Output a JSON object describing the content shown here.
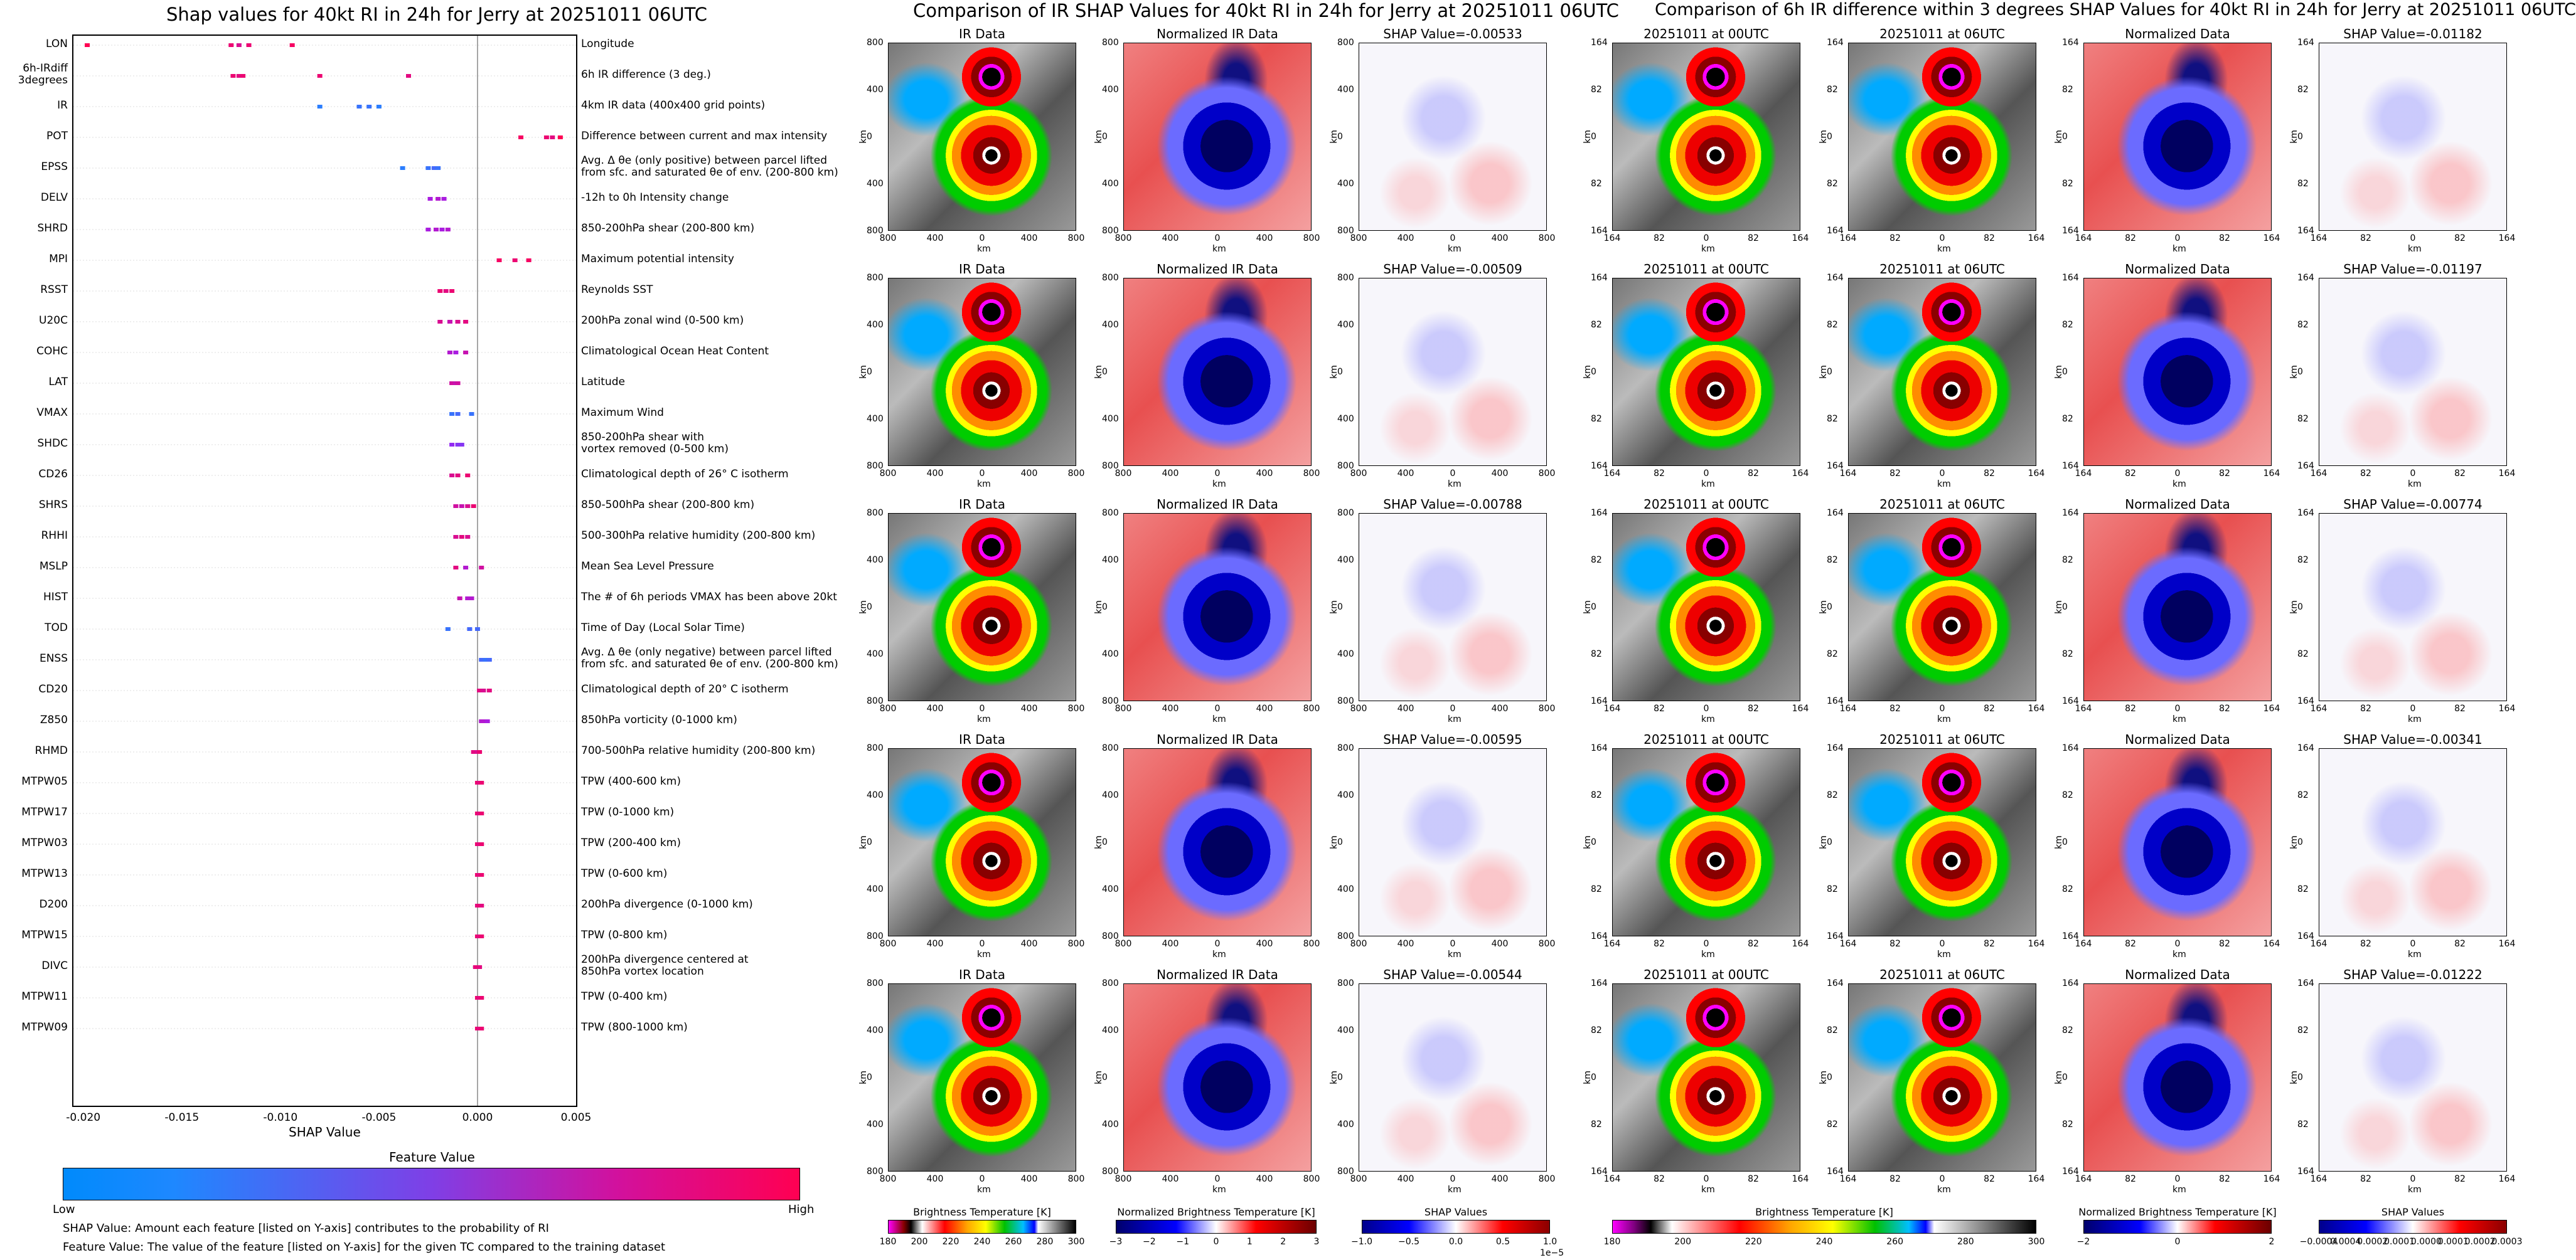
{
  "colors": {
    "low": "#1e88ff",
    "mid": "#a020f0",
    "high": "#ff0052"
  },
  "chart_data": [
    {
      "type": "scatter",
      "title": "Shap values for 40kt RI in 24h for Jerry at 20251011 06UTC",
      "xlabel": "SHAP Value",
      "xlim": [
        -0.0205,
        0.005
      ],
      "xticks": [
        "-0.020",
        "-0.015",
        "-0.010",
        "-0.005",
        "0.000",
        "0.005"
      ],
      "xtick_values": [
        -0.02,
        -0.015,
        -0.01,
        -0.005,
        0,
        0.005
      ],
      "colorbar": {
        "title": "Feature Value",
        "low": "Low",
        "high": "High"
      },
      "features": [
        {
          "code": "LON",
          "desc": "Longitude",
          "points": [
            [
              -0.0198,
              1
            ],
            [
              -0.0125,
              0.9
            ],
            [
              -0.0121,
              0.8
            ],
            [
              -0.0116,
              0.9
            ],
            [
              -0.0094,
              0.95
            ]
          ]
        },
        {
          "code": "6h-IRdiff\n3degrees",
          "desc": "6h IR difference (3 deg.)",
          "points": [
            [
              -0.0124,
              0.9
            ],
            [
              -0.0121,
              0.85
            ],
            [
              -0.0119,
              0.9
            ],
            [
              -0.008,
              0.9
            ],
            [
              -0.0035,
              0.85
            ]
          ]
        },
        {
          "code": "IR",
          "desc": "4km IR data (400x400 grid points)",
          "points": [
            [
              -0.008,
              0.05
            ],
            [
              -0.006,
              0.1
            ],
            [
              -0.0055,
              0.1
            ],
            [
              -0.005,
              0.05
            ]
          ]
        },
        {
          "code": "POT",
          "desc": "Difference between current and max intensity",
          "points": [
            [
              0.0022,
              0.95
            ],
            [
              0.0035,
              0.9
            ],
            [
              0.0038,
              0.85
            ],
            [
              0.0042,
              1
            ]
          ]
        },
        {
          "code": "EPSS",
          "desc": "Avg. Δ θe (only positive) between parcel lifted\nfrom sfc. and saturated θe of env. (200-800 km)",
          "points": [
            [
              -0.0038,
              0.05
            ],
            [
              -0.0025,
              0.1
            ],
            [
              -0.0022,
              0.15
            ],
            [
              -0.002,
              0.1
            ]
          ]
        },
        {
          "code": "DELV",
          "desc": "-12h to 0h Intensity change",
          "points": [
            [
              -0.0024,
              0.55
            ],
            [
              -0.002,
              0.6
            ],
            [
              -0.0017,
              0.55
            ]
          ]
        },
        {
          "code": "SHRD",
          "desc": "850-200hPa shear (200-800 km)",
          "points": [
            [
              -0.0025,
              0.55
            ],
            [
              -0.0021,
              0.6
            ],
            [
              -0.0018,
              0.55
            ],
            [
              -0.0015,
              0.6
            ]
          ]
        },
        {
          "code": "MPI",
          "desc": "Maximum potential intensity",
          "points": [
            [
              0.0011,
              0.95
            ],
            [
              0.0019,
              0.9
            ],
            [
              0.0026,
              0.95
            ]
          ]
        },
        {
          "code": "RSST",
          "desc": "Reynolds SST",
          "points": [
            [
              -0.0019,
              0.9
            ],
            [
              -0.0016,
              0.85
            ],
            [
              -0.0013,
              0.9
            ]
          ]
        },
        {
          "code": "U20C",
          "desc": "200hPa zonal wind (0-500 km)",
          "points": [
            [
              -0.0019,
              0.8
            ],
            [
              -0.0014,
              0.7
            ],
            [
              -0.001,
              0.8
            ],
            [
              -0.0006,
              0.85
            ]
          ]
        },
        {
          "code": "COHC",
          "desc": "Climatological Ocean Heat Content",
          "points": [
            [
              -0.0014,
              0.6
            ],
            [
              -0.0011,
              0.55
            ],
            [
              -0.0006,
              0.7
            ]
          ]
        },
        {
          "code": "LAT",
          "desc": "Latitude",
          "points": [
            [
              -0.0013,
              0.75
            ],
            [
              -0.0011,
              0.7
            ],
            [
              -0.001,
              0.75
            ]
          ]
        },
        {
          "code": "VMAX",
          "desc": "Maximum Wind",
          "points": [
            [
              -0.0013,
              0.1
            ],
            [
              -0.001,
              0.15
            ],
            [
              -0.0003,
              0.1
            ]
          ]
        },
        {
          "code": "SHDC",
          "desc": "850-200hPa shear with\nvortex removed (0-500 km)",
          "points": [
            [
              -0.0013,
              0.45
            ],
            [
              -0.001,
              0.4
            ],
            [
              -0.0008,
              0.4
            ]
          ]
        },
        {
          "code": "CD26",
          "desc": "Climatological depth of 26° C isotherm",
          "points": [
            [
              -0.0013,
              0.8
            ],
            [
              -0.001,
              0.85
            ],
            [
              -0.0005,
              0.9
            ]
          ]
        },
        {
          "code": "SHRS",
          "desc": "850-500hPa shear (200-800 km)",
          "points": [
            [
              -0.0011,
              0.75
            ],
            [
              -0.0008,
              0.7
            ],
            [
              -0.0005,
              0.8
            ],
            [
              -0.0002,
              0.9
            ]
          ]
        },
        {
          "code": "RHHI",
          "desc": "500-300hPa relative humidity (200-800 km)",
          "points": [
            [
              -0.0011,
              0.8
            ],
            [
              -0.0008,
              0.85
            ],
            [
              -0.0005,
              0.8
            ]
          ]
        },
        {
          "code": "MSLP",
          "desc": "Mean Sea Level Pressure",
          "points": [
            [
              -0.0011,
              0.85
            ],
            [
              -0.0006,
              0.6
            ],
            [
              0.0002,
              0.75
            ]
          ]
        },
        {
          "code": "HIST",
          "desc": "The # of 6h periods VMAX has been above 20kt",
          "points": [
            [
              -0.0009,
              0.7
            ],
            [
              -0.0005,
              0.6
            ],
            [
              -0.0003,
              0.6
            ]
          ]
        },
        {
          "code": "TOD",
          "desc": "Time of Day (Local Solar Time)",
          "points": [
            [
              -0.0015,
              0.1
            ],
            [
              -0.0004,
              0.15
            ],
            [
              0.0,
              0.15
            ]
          ]
        },
        {
          "code": "ENSS",
          "desc": "Avg. Δ θe (only negative) between parcel lifted\nfrom sfc. and saturated θe of env. (200-800 km)",
          "points": [
            [
              0.0002,
              0.15
            ],
            [
              0.0004,
              0.1
            ],
            [
              0.0006,
              0.15
            ]
          ]
        },
        {
          "code": "CD20",
          "desc": "Climatological depth of 20° C isotherm",
          "points": [
            [
              0.0001,
              0.85
            ],
            [
              0.0003,
              0.8
            ],
            [
              0.0006,
              0.85
            ]
          ]
        },
        {
          "code": "Z850",
          "desc": "850hPa vorticity (0-1000 km)",
          "points": [
            [
              0.0002,
              0.6
            ],
            [
              0.0004,
              0.6
            ],
            [
              0.0005,
              0.55
            ]
          ]
        },
        {
          "code": "RHMD",
          "desc": "700-500hPa relative humidity (200-800 km)",
          "points": [
            [
              -0.0002,
              0.85
            ],
            [
              0.0,
              0.8
            ],
            [
              0.0001,
              0.9
            ]
          ]
        },
        {
          "code": "MTPW05",
          "desc": "TPW (400-600 km)",
          "points": [
            [
              0.0,
              0.9
            ],
            [
              0.0001,
              0.85
            ],
            [
              0.0002,
              0.9
            ]
          ]
        },
        {
          "code": "MTPW17",
          "desc": "TPW (0-1000 km)",
          "points": [
            [
              0.0,
              0.9
            ],
            [
              0.0001,
              0.85
            ],
            [
              0.0002,
              0.9
            ]
          ]
        },
        {
          "code": "MTPW03",
          "desc": "TPW (200-400 km)",
          "points": [
            [
              0.0,
              0.9
            ],
            [
              0.0001,
              0.85
            ],
            [
              0.0002,
              0.9
            ]
          ]
        },
        {
          "code": "MTPW13",
          "desc": "TPW (0-600 km)",
          "points": [
            [
              0.0,
              0.9
            ],
            [
              0.0001,
              0.85
            ],
            [
              0.0002,
              0.9
            ]
          ]
        },
        {
          "code": "D200",
          "desc": "200hPa divergence (0-1000 km)",
          "points": [
            [
              0.0,
              0.85
            ],
            [
              0.0001,
              0.9
            ],
            [
              0.0002,
              0.85
            ]
          ]
        },
        {
          "code": "MTPW15",
          "desc": "TPW (0-800 km)",
          "points": [
            [
              0.0,
              0.9
            ],
            [
              0.0001,
              0.85
            ],
            [
              0.0002,
              0.9
            ]
          ]
        },
        {
          "code": "DIVC",
          "desc": "200hPa divergence centered at\n850hPa vortex location",
          "points": [
            [
              -0.0001,
              0.85
            ],
            [
              0.0,
              0.9
            ],
            [
              0.0001,
              0.85
            ]
          ]
        },
        {
          "code": "MTPW11",
          "desc": "TPW (0-400 km)",
          "points": [
            [
              0.0,
              0.9
            ],
            [
              0.0001,
              0.85
            ],
            [
              0.0002,
              0.9
            ]
          ]
        },
        {
          "code": "MTPW09",
          "desc": "TPW (800-1000 km)",
          "points": [
            [
              0.0,
              0.9
            ],
            [
              0.0001,
              0.85
            ],
            [
              0.0002,
              0.9
            ]
          ]
        }
      ]
    },
    {
      "type": "heatmap",
      "title": "Comparison of IR SHAP Values for 40kt RI in 24h for Jerry at 20251011 06UTC",
      "col_titles": [
        "IR Data",
        "Normalized IR Data"
      ],
      "shap_titles": [
        "SHAP Value=-0.00533",
        "SHAP Value=-0.00509",
        "SHAP Value=-0.00788",
        "SHAP Value=-0.00595",
        "SHAP Value=-0.00544"
      ],
      "xlabel": "km",
      "ylabel": "km",
      "xticks": [
        "800",
        "400",
        "0",
        "400",
        "800"
      ],
      "yticks": [
        "800",
        "400",
        "0",
        "400",
        "800"
      ],
      "colorbars": [
        {
          "label": "Brightness Temperature [K]",
          "ticks": [
            "180",
            "200",
            "220",
            "240",
            "260",
            "280",
            "300"
          ]
        },
        {
          "label": "Normalized Brightness Temperature [K]",
          "ticks": [
            "−3",
            "−2",
            "−1",
            "0",
            "1",
            "2",
            "3"
          ]
        },
        {
          "label": "SHAP Values",
          "ticks": [
            "−1.0",
            "−0.5",
            "0.0",
            "0.5",
            "1.0"
          ],
          "exponent": "1e−5"
        }
      ]
    },
    {
      "type": "heatmap",
      "title": "Comparison of 6h IR difference within 3 degrees SHAP Values for 40kt RI in 24h for Jerry at 20251011 06UTC",
      "col_titles": [
        "20251011 at 00UTC",
        "20251011 at 06UTC",
        "Normalized Data"
      ],
      "shap_titles": [
        "SHAP Value=-0.01182",
        "SHAP Value=-0.01197",
        "SHAP Value=-0.00774",
        "SHAP Value=-0.00341",
        "SHAP Value=-0.01222"
      ],
      "xlabel": "km",
      "ylabel": "km",
      "xticks": [
        "164",
        "82",
        "0",
        "82",
        "164"
      ],
      "yticks": [
        "164",
        "82",
        "0",
        "82",
        "164"
      ],
      "colorbars": [
        {
          "label": "Brightness Temperature [K]",
          "ticks": [
            "180",
            "200",
            "220",
            "240",
            "260",
            "280",
            "300"
          ]
        },
        {
          "label": "Normalized Brightness Temperature [K]",
          "ticks": [
            "−2",
            "0",
            "2"
          ]
        },
        {
          "label": "SHAP Values",
          "ticks": [
            "−0.0004",
            "0.0004",
            "0.0002",
            "0.0001",
            "0.0000",
            "0.0001",
            "0.0002",
            "0.0003"
          ]
        }
      ]
    }
  ],
  "notes": {
    "line1": "SHAP Value: Amount each feature [listed on Y-axis] contributes to the probability of RI",
    "line2": "Feature Value: The value of the feature [listed on Y-axis] for the given TC compared to the training dataset"
  }
}
